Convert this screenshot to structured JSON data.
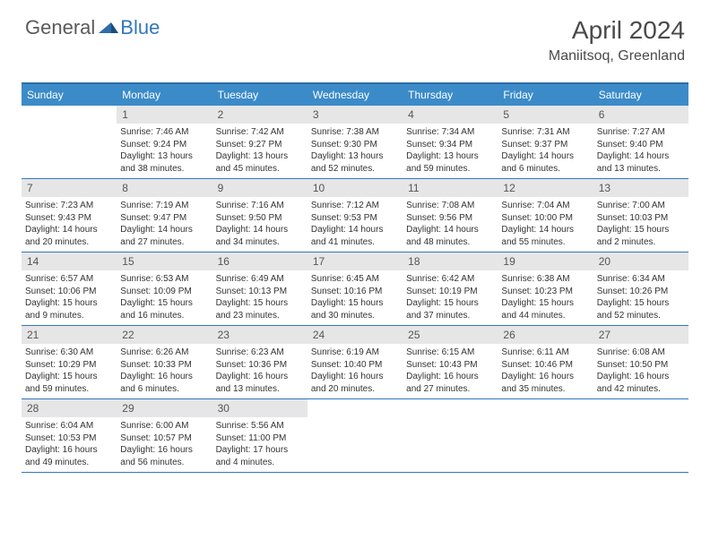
{
  "logo": {
    "general": "General",
    "blue": "Blue"
  },
  "title": "April 2024",
  "location": "Maniitsoq, Greenland",
  "colors": {
    "header_bg": "#3b8bc9",
    "border": "#3277bc",
    "daynum_bg": "#e6e6e6",
    "text": "#333333",
    "title_color": "#4a4a4a"
  },
  "day_names": [
    "Sunday",
    "Monday",
    "Tuesday",
    "Wednesday",
    "Thursday",
    "Friday",
    "Saturday"
  ],
  "weeks": [
    [
      {
        "num": "",
        "sunrise": "",
        "sunset": "",
        "daylight": ""
      },
      {
        "num": "1",
        "sunrise": "Sunrise: 7:46 AM",
        "sunset": "Sunset: 9:24 PM",
        "daylight": "Daylight: 13 hours and 38 minutes."
      },
      {
        "num": "2",
        "sunrise": "Sunrise: 7:42 AM",
        "sunset": "Sunset: 9:27 PM",
        "daylight": "Daylight: 13 hours and 45 minutes."
      },
      {
        "num": "3",
        "sunrise": "Sunrise: 7:38 AM",
        "sunset": "Sunset: 9:30 PM",
        "daylight": "Daylight: 13 hours and 52 minutes."
      },
      {
        "num": "4",
        "sunrise": "Sunrise: 7:34 AM",
        "sunset": "Sunset: 9:34 PM",
        "daylight": "Daylight: 13 hours and 59 minutes."
      },
      {
        "num": "5",
        "sunrise": "Sunrise: 7:31 AM",
        "sunset": "Sunset: 9:37 PM",
        "daylight": "Daylight: 14 hours and 6 minutes."
      },
      {
        "num": "6",
        "sunrise": "Sunrise: 7:27 AM",
        "sunset": "Sunset: 9:40 PM",
        "daylight": "Daylight: 14 hours and 13 minutes."
      }
    ],
    [
      {
        "num": "7",
        "sunrise": "Sunrise: 7:23 AM",
        "sunset": "Sunset: 9:43 PM",
        "daylight": "Daylight: 14 hours and 20 minutes."
      },
      {
        "num": "8",
        "sunrise": "Sunrise: 7:19 AM",
        "sunset": "Sunset: 9:47 PM",
        "daylight": "Daylight: 14 hours and 27 minutes."
      },
      {
        "num": "9",
        "sunrise": "Sunrise: 7:16 AM",
        "sunset": "Sunset: 9:50 PM",
        "daylight": "Daylight: 14 hours and 34 minutes."
      },
      {
        "num": "10",
        "sunrise": "Sunrise: 7:12 AM",
        "sunset": "Sunset: 9:53 PM",
        "daylight": "Daylight: 14 hours and 41 minutes."
      },
      {
        "num": "11",
        "sunrise": "Sunrise: 7:08 AM",
        "sunset": "Sunset: 9:56 PM",
        "daylight": "Daylight: 14 hours and 48 minutes."
      },
      {
        "num": "12",
        "sunrise": "Sunrise: 7:04 AM",
        "sunset": "Sunset: 10:00 PM",
        "daylight": "Daylight: 14 hours and 55 minutes."
      },
      {
        "num": "13",
        "sunrise": "Sunrise: 7:00 AM",
        "sunset": "Sunset: 10:03 PM",
        "daylight": "Daylight: 15 hours and 2 minutes."
      }
    ],
    [
      {
        "num": "14",
        "sunrise": "Sunrise: 6:57 AM",
        "sunset": "Sunset: 10:06 PM",
        "daylight": "Daylight: 15 hours and 9 minutes."
      },
      {
        "num": "15",
        "sunrise": "Sunrise: 6:53 AM",
        "sunset": "Sunset: 10:09 PM",
        "daylight": "Daylight: 15 hours and 16 minutes."
      },
      {
        "num": "16",
        "sunrise": "Sunrise: 6:49 AM",
        "sunset": "Sunset: 10:13 PM",
        "daylight": "Daylight: 15 hours and 23 minutes."
      },
      {
        "num": "17",
        "sunrise": "Sunrise: 6:45 AM",
        "sunset": "Sunset: 10:16 PM",
        "daylight": "Daylight: 15 hours and 30 minutes."
      },
      {
        "num": "18",
        "sunrise": "Sunrise: 6:42 AM",
        "sunset": "Sunset: 10:19 PM",
        "daylight": "Daylight: 15 hours and 37 minutes."
      },
      {
        "num": "19",
        "sunrise": "Sunrise: 6:38 AM",
        "sunset": "Sunset: 10:23 PM",
        "daylight": "Daylight: 15 hours and 44 minutes."
      },
      {
        "num": "20",
        "sunrise": "Sunrise: 6:34 AM",
        "sunset": "Sunset: 10:26 PM",
        "daylight": "Daylight: 15 hours and 52 minutes."
      }
    ],
    [
      {
        "num": "21",
        "sunrise": "Sunrise: 6:30 AM",
        "sunset": "Sunset: 10:29 PM",
        "daylight": "Daylight: 15 hours and 59 minutes."
      },
      {
        "num": "22",
        "sunrise": "Sunrise: 6:26 AM",
        "sunset": "Sunset: 10:33 PM",
        "daylight": "Daylight: 16 hours and 6 minutes."
      },
      {
        "num": "23",
        "sunrise": "Sunrise: 6:23 AM",
        "sunset": "Sunset: 10:36 PM",
        "daylight": "Daylight: 16 hours and 13 minutes."
      },
      {
        "num": "24",
        "sunrise": "Sunrise: 6:19 AM",
        "sunset": "Sunset: 10:40 PM",
        "daylight": "Daylight: 16 hours and 20 minutes."
      },
      {
        "num": "25",
        "sunrise": "Sunrise: 6:15 AM",
        "sunset": "Sunset: 10:43 PM",
        "daylight": "Daylight: 16 hours and 27 minutes."
      },
      {
        "num": "26",
        "sunrise": "Sunrise: 6:11 AM",
        "sunset": "Sunset: 10:46 PM",
        "daylight": "Daylight: 16 hours and 35 minutes."
      },
      {
        "num": "27",
        "sunrise": "Sunrise: 6:08 AM",
        "sunset": "Sunset: 10:50 PM",
        "daylight": "Daylight: 16 hours and 42 minutes."
      }
    ],
    [
      {
        "num": "28",
        "sunrise": "Sunrise: 6:04 AM",
        "sunset": "Sunset: 10:53 PM",
        "daylight": "Daylight: 16 hours and 49 minutes."
      },
      {
        "num": "29",
        "sunrise": "Sunrise: 6:00 AM",
        "sunset": "Sunset: 10:57 PM",
        "daylight": "Daylight: 16 hours and 56 minutes."
      },
      {
        "num": "30",
        "sunrise": "Sunrise: 5:56 AM",
        "sunset": "Sunset: 11:00 PM",
        "daylight": "Daylight: 17 hours and 4 minutes."
      },
      {
        "num": "",
        "sunrise": "",
        "sunset": "",
        "daylight": ""
      },
      {
        "num": "",
        "sunrise": "",
        "sunset": "",
        "daylight": ""
      },
      {
        "num": "",
        "sunrise": "",
        "sunset": "",
        "daylight": ""
      },
      {
        "num": "",
        "sunrise": "",
        "sunset": "",
        "daylight": ""
      }
    ]
  ]
}
